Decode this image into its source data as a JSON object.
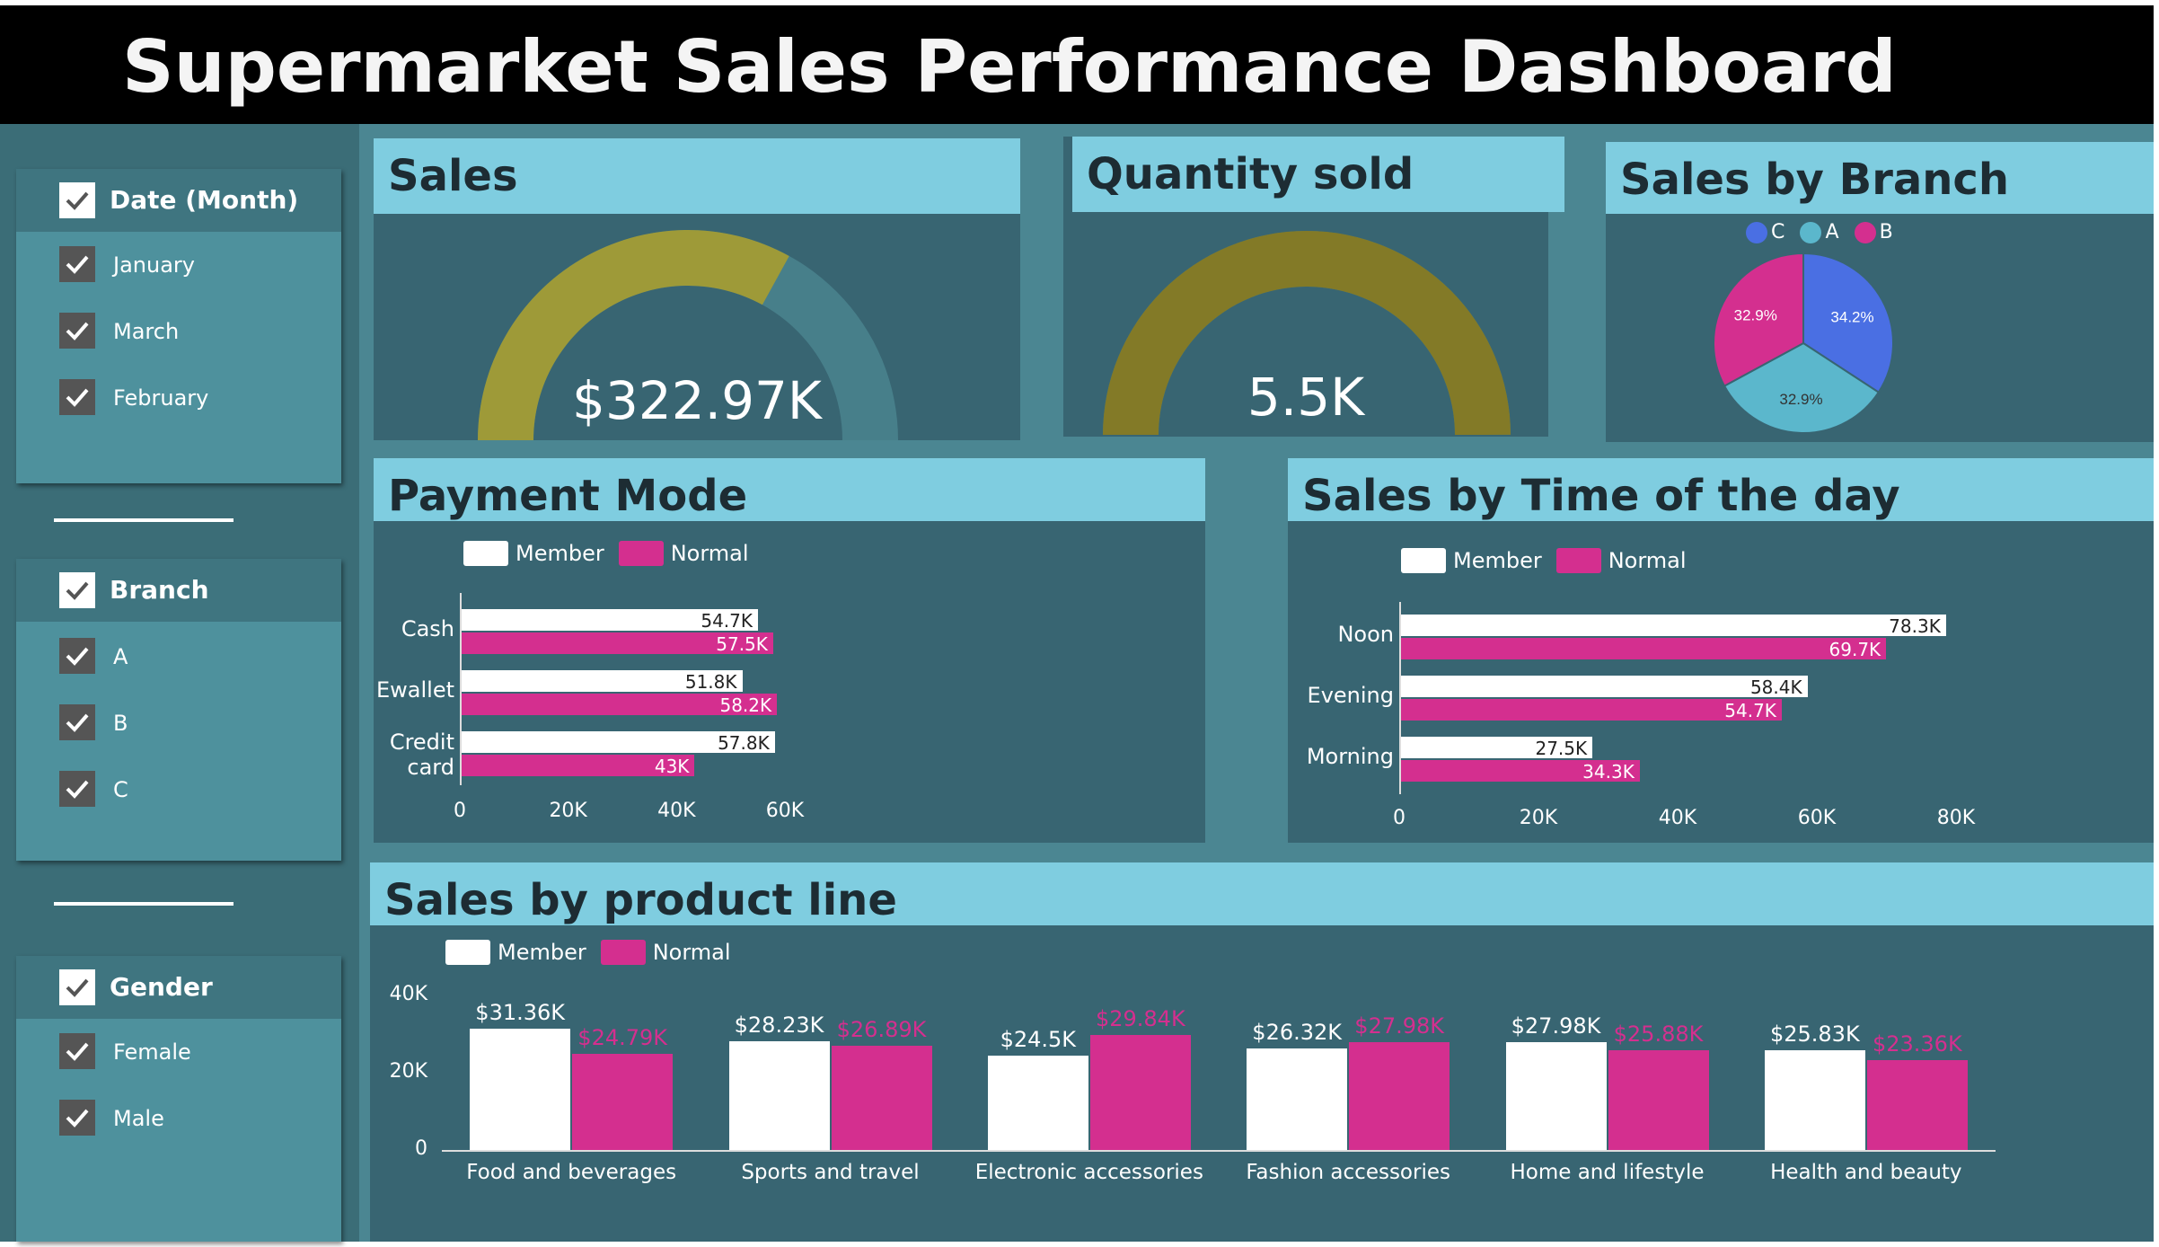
{
  "header": {
    "title": "Supermarket Sales Performance Dashboard"
  },
  "colors": {
    "member": "#ffffff",
    "normal": "#d42f8f",
    "branch_c": "#4a6fe3",
    "branch_a": "#5bb7cc",
    "branch_b": "#d42f8f",
    "gauge_sales": "#9e9a38",
    "gauge_quantity": "#837a27"
  },
  "slicers": {
    "month": {
      "title": "Date (Month)",
      "items": [
        "January",
        "March",
        "February"
      ]
    },
    "branch": {
      "title": "Branch",
      "items": [
        "A",
        "B",
        "C"
      ]
    },
    "gender": {
      "title": "Gender",
      "items": [
        "Female",
        "Male"
      ]
    }
  },
  "sales_card": {
    "title": "Sales",
    "value": "$322.97K",
    "fill_fraction": 0.66
  },
  "quantity_card": {
    "title": "Quantity sold",
    "value": "5.5K",
    "fill_fraction": 1.0
  },
  "chart_data": [
    {
      "id": "sales_by_branch",
      "type": "pie",
      "title": "Sales by Branch",
      "legend": [
        "C",
        "A",
        "B"
      ],
      "legend_position": "top",
      "slices": [
        {
          "name": "C",
          "value": 34.2,
          "label": "34.2%"
        },
        {
          "name": "A",
          "value": 32.9,
          "label": "32.9%"
        },
        {
          "name": "B",
          "value": 32.9,
          "label": "32.9%"
        }
      ]
    },
    {
      "id": "payment_mode",
      "type": "bar",
      "orientation": "horizontal",
      "title": "Payment Mode",
      "categories": [
        "Cash",
        "Ewallet",
        "Credit card"
      ],
      "series": [
        {
          "name": "Member",
          "values": [
            54.7,
            51.8,
            57.8
          ],
          "labels": [
            "54.7K",
            "51.8K",
            "57.8K"
          ]
        },
        {
          "name": "Normal",
          "values": [
            57.5,
            58.2,
            43.0
          ],
          "labels": [
            "57.5K",
            "58.2K",
            "43K"
          ]
        }
      ],
      "xlim": [
        0,
        60
      ],
      "ticks": [
        "0",
        "20K",
        "40K",
        "60K"
      ],
      "legend_position": "top-left"
    },
    {
      "id": "sales_by_time",
      "type": "bar",
      "orientation": "horizontal",
      "title": "Sales by Time of the day",
      "categories": [
        "Noon",
        "Evening",
        "Morning"
      ],
      "series": [
        {
          "name": "Member",
          "values": [
            78.3,
            58.4,
            27.5
          ],
          "labels": [
            "78.3K",
            "58.4K",
            "27.5K"
          ]
        },
        {
          "name": "Normal",
          "values": [
            69.7,
            54.7,
            34.3
          ],
          "labels": [
            "69.7K",
            "54.7K",
            "34.3K"
          ]
        }
      ],
      "xlim": [
        0,
        80
      ],
      "ticks": [
        "0",
        "20K",
        "40K",
        "60K",
        "80K"
      ],
      "legend_position": "top-left"
    },
    {
      "id": "sales_by_product_line",
      "type": "bar",
      "orientation": "vertical",
      "title": "Sales by product line",
      "categories": [
        "Food and beverages",
        "Sports and travel",
        "Electronic accessories",
        "Fashion accessories",
        "Home and lifestyle",
        "Health and beauty"
      ],
      "series": [
        {
          "name": "Member",
          "values": [
            31.36,
            28.23,
            24.5,
            26.32,
            27.98,
            25.83
          ],
          "labels": [
            "$31.36K",
            "$28.23K",
            "$24.5K",
            "$26.32K",
            "$27.98K",
            "$25.83K"
          ]
        },
        {
          "name": "Normal",
          "values": [
            24.79,
            26.89,
            29.84,
            27.98,
            25.88,
            23.36
          ],
          "labels": [
            "$24.79K",
            "$26.89K",
            "$29.84K",
            "$27.98K",
            "$25.88K",
            "$23.36K"
          ]
        }
      ],
      "ylim": [
        0,
        40
      ],
      "ticks": [
        "40K",
        "20K",
        "0"
      ],
      "legend_position": "top-left"
    }
  ]
}
